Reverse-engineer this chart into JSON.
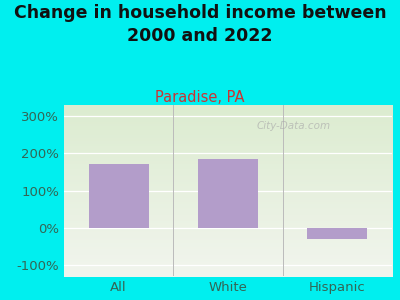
{
  "title": "Change in household income between\n2000 and 2022",
  "subtitle": "Paradise, PA",
  "categories": [
    "All",
    "White",
    "Hispanic"
  ],
  "values": [
    170,
    185,
    -30
  ],
  "bar_color": "#b39dca",
  "background_color": "#00EFEF",
  "plot_bg_top": "#f2f5ee",
  "plot_bg_bottom": "#dcecd0",
  "title_color": "#111111",
  "subtitle_color": "#cc3333",
  "tick_color": "#336655",
  "ylabel_ticks": [
    "-100%",
    "0%",
    "100%",
    "200%",
    "300%"
  ],
  "ytick_vals": [
    -100,
    0,
    100,
    200,
    300
  ],
  "ylim": [
    -130,
    330
  ],
  "title_fontsize": 12.5,
  "subtitle_fontsize": 10.5,
  "tick_fontsize": 9.5,
  "watermark": "City-Data.com"
}
